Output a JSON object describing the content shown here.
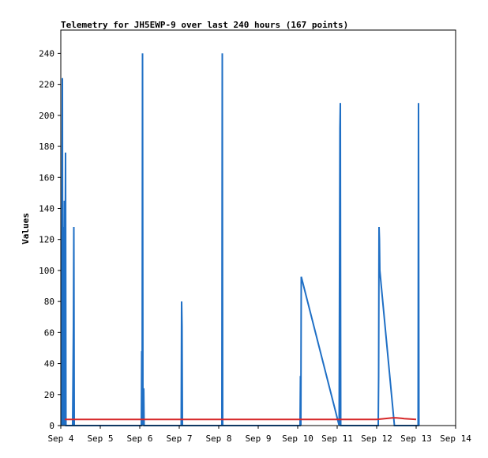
{
  "chart_data": {
    "type": "line",
    "title": "Telemetry for JH5EWP-9 over last 240 hours (167 points)",
    "xlabel": "",
    "ylabel": "Values",
    "ylim": [
      0,
      255
    ],
    "xlim": [
      0,
      10
    ],
    "x_ticks": [
      {
        "value": 0,
        "label": "Sep 4"
      },
      {
        "value": 1,
        "label": "Sep 5"
      },
      {
        "value": 2,
        "label": "Sep 6"
      },
      {
        "value": 3,
        "label": "Sep 7"
      },
      {
        "value": 4,
        "label": "Sep 8"
      },
      {
        "value": 5,
        "label": "Sep 9"
      },
      {
        "value": 6,
        "label": "Sep 10"
      },
      {
        "value": 7,
        "label": "Sep 11"
      },
      {
        "value": 8,
        "label": "Sep 12"
      },
      {
        "value": 9,
        "label": "Sep 13"
      },
      {
        "value": 10,
        "label": "Sep 14"
      }
    ],
    "y_ticks": [
      0,
      20,
      40,
      60,
      80,
      100,
      120,
      140,
      160,
      180,
      200,
      220,
      240
    ],
    "grid": false,
    "series": [
      {
        "color": "#1f6fc5",
        "points": [
          [
            0.02,
            0
          ],
          [
            0.04,
            224
          ],
          [
            0.05,
            0
          ],
          [
            0.06,
            128
          ],
          [
            0.07,
            0
          ],
          [
            0.09,
            145
          ],
          [
            0.1,
            0
          ],
          [
            0.12,
            176
          ],
          [
            0.13,
            0
          ],
          [
            0.3,
            0
          ],
          [
            0.31,
            32
          ],
          [
            0.32,
            64
          ],
          [
            0.33,
            128
          ],
          [
            0.34,
            0
          ],
          [
            2.04,
            0
          ],
          [
            2.05,
            48
          ],
          [
            2.06,
            0
          ],
          [
            2.07,
            240
          ],
          [
            2.08,
            0
          ],
          [
            2.1,
            24
          ],
          [
            2.11,
            0
          ],
          [
            3.05,
            0
          ],
          [
            3.06,
            80
          ],
          [
            3.07,
            64
          ],
          [
            3.08,
            0
          ],
          [
            4.08,
            0
          ],
          [
            4.09,
            240
          ],
          [
            4.1,
            0
          ],
          [
            6.06,
            0
          ],
          [
            6.07,
            32
          ],
          [
            6.08,
            0
          ],
          [
            6.09,
            96
          ],
          [
            7.05,
            0
          ],
          [
            7.07,
            192
          ],
          [
            7.08,
            208
          ],
          [
            7.09,
            0
          ],
          [
            8.04,
            0
          ],
          [
            8.05,
            32
          ],
          [
            8.06,
            128
          ],
          [
            8.07,
            120
          ],
          [
            8.08,
            100
          ],
          [
            8.45,
            0
          ],
          [
            9.05,
            0
          ],
          [
            9.06,
            208
          ],
          [
            9.07,
            0
          ]
        ]
      },
      {
        "color": "#d62728",
        "points": [
          [
            0.1,
            4
          ],
          [
            8.0,
            4
          ],
          [
            8.2,
            4.5
          ],
          [
            8.4,
            5
          ],
          [
            8.5,
            5
          ],
          [
            8.7,
            4.5
          ],
          [
            9.0,
            4
          ]
        ]
      }
    ]
  }
}
